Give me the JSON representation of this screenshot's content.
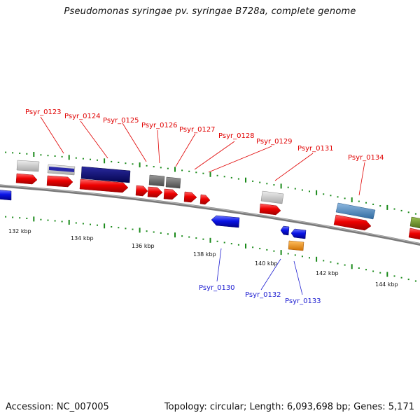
{
  "title": "Pseudomonas syringae pv. syringae B728a, complete genome",
  "accession": "Accession: NC_007005",
  "stats": "Topology: circular; Length: 6,093,698 bp; Genes: 5,171",
  "kbp_labels": [
    "132 kbp",
    "134 kbp",
    "136 kbp",
    "138 kbp",
    "140 kbp",
    "142 kbp",
    "144 kbp"
  ],
  "forward_genes": [
    "Psyr_0123",
    "Psyr_0124",
    "Psyr_0125",
    "Psyr_0126",
    "Psyr_0127",
    "Psyr_0128",
    "Psyr_0129",
    "Psyr_0131",
    "Psyr_0134"
  ],
  "reverse_genes": [
    "Psyr_0130",
    "Psyr_0132",
    "Psyr_0133"
  ],
  "colors": {
    "forward_cds": "#ee0000",
    "reverse_cds": "#0a14e6",
    "label_forward": "#e00000",
    "label_reverse": "#1a1ad0",
    "backbone": "#808080",
    "ticks": "#1a8a1a",
    "feature_orange": "#f08c00",
    "feature_navy": "#0a0a78",
    "feature_steelblue": "#4682b4",
    "feature_olive": "#6b8e23"
  }
}
